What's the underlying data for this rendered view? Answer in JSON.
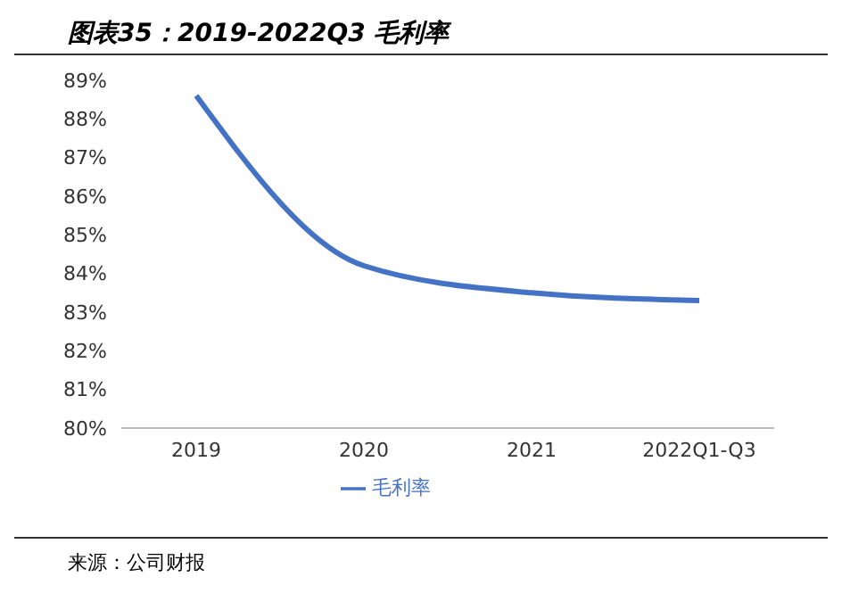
{
  "chart_data": {
    "type": "line",
    "title": "图表35：2019-2022Q3 毛利率",
    "categories": [
      "2019",
      "2020",
      "2021",
      "2022Q1-Q3"
    ],
    "series": [
      {
        "name": "毛利率",
        "color": "#4472c4",
        "values": [
          88.6,
          84.2,
          83.5,
          83.3
        ]
      }
    ],
    "ylim": [
      80,
      89
    ],
    "yticks": [
      {
        "value": 80,
        "label": "80%"
      },
      {
        "value": 81,
        "label": "81%"
      },
      {
        "value": 82,
        "label": "82%"
      },
      {
        "value": 83,
        "label": "83%"
      },
      {
        "value": 84,
        "label": "84%"
      },
      {
        "value": 85,
        "label": "85%"
      },
      {
        "value": 86,
        "label": "86%"
      },
      {
        "value": 87,
        "label": "87%"
      },
      {
        "value": 88,
        "label": "88%"
      },
      {
        "value": 89,
        "label": "89%"
      }
    ],
    "grid": false,
    "legend": "bottom",
    "marker": "none",
    "line_style": "solid",
    "annotations": [
      "来源：公司财报"
    ]
  }
}
